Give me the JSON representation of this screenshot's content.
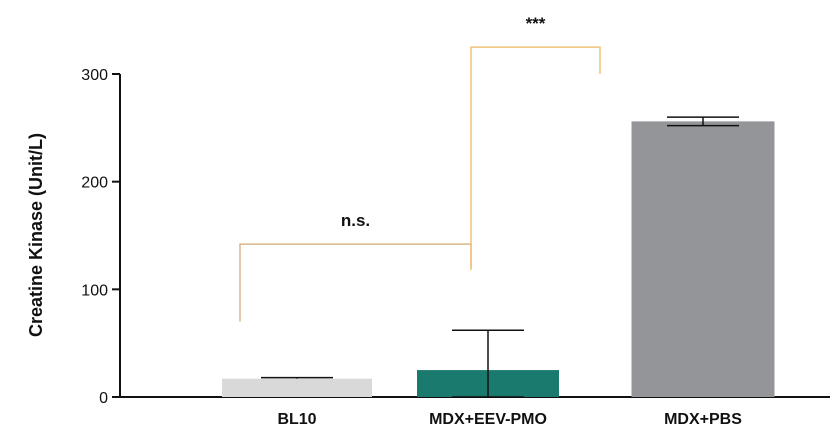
{
  "chart_data": {
    "type": "bar",
    "ylabel": "Creatine Kinase (Unit/L)",
    "xlabel": "",
    "ylim": [
      0,
      300
    ],
    "yticks": [
      0,
      100,
      200,
      300
    ],
    "grid": false,
    "categories": [
      "BL10",
      "MDX+EEV-PMO",
      "MDX+PBS"
    ],
    "values": [
      17,
      25,
      256
    ],
    "error_plus": [
      1,
      37,
      4
    ],
    "error_minus": [
      0,
      25,
      4
    ],
    "bar_colors": [
      "#d9d9d9",
      "#1a7a6e",
      "#939598"
    ],
    "annotations": [
      {
        "label": "n.s.",
        "from": 0,
        "to": 1,
        "left_y": 70,
        "right_y": 120,
        "top_y": 142,
        "color": "#d8b88a"
      },
      {
        "label": "***",
        "from": 1,
        "to": 2,
        "left_y": 118,
        "right_y": 300,
        "top_y": 325,
        "color": "#f2c27a"
      }
    ]
  }
}
